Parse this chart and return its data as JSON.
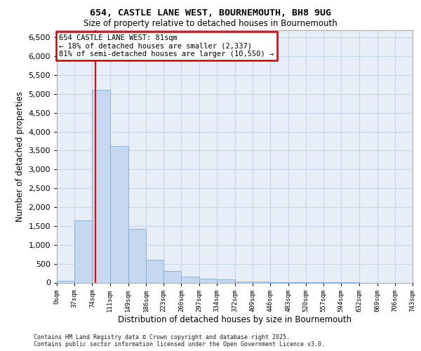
{
  "title_line1": "654, CASTLE LANE WEST, BOURNEMOUTH, BH8 9UG",
  "title_line2": "Size of property relative to detached houses in Bournemouth",
  "xlabel": "Distribution of detached houses by size in Bournemouth",
  "ylabel": "Number of detached properties",
  "footer_line1": "Contains HM Land Registry data © Crown copyright and database right 2025.",
  "footer_line2": "Contains public sector information licensed under the Open Government Licence v3.0.",
  "bar_color": "#c5d8f0",
  "bar_edgecolor": "#7aaed6",
  "grid_color": "#c8d4e8",
  "background_color": "#e8eef8",
  "annotation_box_edgecolor": "#cc0000",
  "property_sqm": 81,
  "annotation_text_line1": "654 CASTLE LANE WEST: 81sqm",
  "annotation_text_line2": "← 18% of detached houses are smaller (2,337)",
  "annotation_text_line3": "81% of semi-detached houses are larger (10,550) →",
  "vline_x": 81,
  "bin_edges": [
    0,
    37,
    74,
    111,
    149,
    186,
    223,
    260,
    297,
    334,
    372,
    409,
    446,
    483,
    520,
    557,
    594,
    632,
    669,
    706,
    743
  ],
  "bin_counts": [
    55,
    1650,
    5100,
    3620,
    1420,
    610,
    310,
    155,
    100,
    75,
    30,
    20,
    5,
    2,
    2,
    1,
    1,
    0,
    0,
    0
  ],
  "ylim": [
    0,
    6700
  ],
  "yticks": [
    0,
    500,
    1000,
    1500,
    2000,
    2500,
    3000,
    3500,
    4000,
    4500,
    5000,
    5500,
    6000,
    6500
  ],
  "fig_width": 6.0,
  "fig_height": 5.0,
  "fig_dpi": 100
}
